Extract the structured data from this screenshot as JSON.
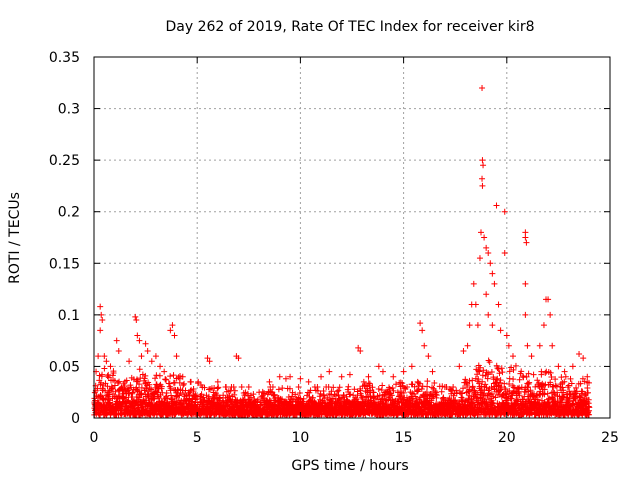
{
  "chart_data": {
    "type": "scatter",
    "title": "Day 262 of 2019, Rate Of TEC Index for receiver kir8",
    "xlabel": "GPS time / hours",
    "ylabel": "ROTI / TECUs",
    "xlim": [
      0,
      25
    ],
    "ylim": [
      0,
      0.35
    ],
    "x_ticks": [
      0,
      5,
      10,
      15,
      20,
      25
    ],
    "y_ticks": [
      0,
      0.05,
      0.1,
      0.15,
      0.2,
      0.25,
      0.3,
      0.35
    ],
    "x_tick_labels": [
      "0",
      "5",
      "10",
      "15",
      "20",
      "25"
    ],
    "y_tick_labels": [
      "0",
      "0.05",
      "0.1",
      "0.15",
      "0.2",
      "0.25",
      "0.3",
      "0.35"
    ],
    "grid": true,
    "marker": "+",
    "marker_color": "#ff0000",
    "series": [
      {
        "name": "ROTI",
        "points": [
          [
            0.1,
            0.045
          ],
          [
            0.2,
            0.06
          ],
          [
            0.3,
            0.108
          ],
          [
            0.35,
            0.1
          ],
          [
            0.4,
            0.095
          ],
          [
            0.3,
            0.085
          ],
          [
            0.5,
            0.06
          ],
          [
            0.6,
            0.055
          ],
          [
            0.8,
            0.05
          ],
          [
            1.1,
            0.075
          ],
          [
            1.2,
            0.065
          ],
          [
            1.5,
            0.035
          ],
          [
            1.7,
            0.055
          ],
          [
            2.0,
            0.098
          ],
          [
            2.05,
            0.095
          ],
          [
            2.1,
            0.08
          ],
          [
            2.2,
            0.075
          ],
          [
            2.3,
            0.06
          ],
          [
            2.5,
            0.072
          ],
          [
            2.6,
            0.065
          ],
          [
            2.8,
            0.055
          ],
          [
            3.0,
            0.06
          ],
          [
            3.2,
            0.05
          ],
          [
            3.4,
            0.045
          ],
          [
            3.7,
            0.085
          ],
          [
            3.8,
            0.09
          ],
          [
            3.9,
            0.08
          ],
          [
            4.0,
            0.06
          ],
          [
            4.3,
            0.04
          ],
          [
            4.7,
            0.035
          ],
          [
            5.5,
            0.058
          ],
          [
            5.6,
            0.055
          ],
          [
            6.0,
            0.035
          ],
          [
            6.4,
            0.03
          ],
          [
            6.9,
            0.06
          ],
          [
            7.0,
            0.058
          ],
          [
            7.5,
            0.03
          ],
          [
            8.0,
            0.025
          ],
          [
            8.5,
            0.035
          ],
          [
            9.0,
            0.04
          ],
          [
            9.3,
            0.038
          ],
          [
            9.5,
            0.04
          ],
          [
            10.0,
            0.038
          ],
          [
            10.4,
            0.035
          ],
          [
            11.0,
            0.04
          ],
          [
            11.4,
            0.045
          ],
          [
            12.0,
            0.04
          ],
          [
            12.4,
            0.042
          ],
          [
            12.8,
            0.068
          ],
          [
            12.9,
            0.065
          ],
          [
            13.3,
            0.04
          ],
          [
            13.8,
            0.05
          ],
          [
            14.0,
            0.045
          ],
          [
            14.5,
            0.04
          ],
          [
            15.0,
            0.045
          ],
          [
            15.4,
            0.05
          ],
          [
            15.8,
            0.092
          ],
          [
            15.9,
            0.085
          ],
          [
            16.0,
            0.07
          ],
          [
            16.2,
            0.06
          ],
          [
            16.4,
            0.045
          ],
          [
            17.0,
            0.03
          ],
          [
            17.4,
            0.03
          ],
          [
            17.7,
            0.05
          ],
          [
            17.9,
            0.065
          ],
          [
            18.1,
            0.07
          ],
          [
            18.2,
            0.09
          ],
          [
            18.3,
            0.11
          ],
          [
            18.4,
            0.13
          ],
          [
            18.5,
            0.11
          ],
          [
            18.6,
            0.09
          ],
          [
            18.7,
            0.155
          ],
          [
            18.75,
            0.18
          ],
          [
            18.8,
            0.32
          ],
          [
            18.82,
            0.25
          ],
          [
            18.85,
            0.245
          ],
          [
            18.8,
            0.232
          ],
          [
            18.82,
            0.225
          ],
          [
            18.9,
            0.175
          ],
          [
            19.0,
            0.165
          ],
          [
            19.1,
            0.16
          ],
          [
            19.2,
            0.15
          ],
          [
            19.3,
            0.14
          ],
          [
            19.4,
            0.13
          ],
          [
            19.0,
            0.12
          ],
          [
            19.1,
            0.1
          ],
          [
            19.3,
            0.09
          ],
          [
            19.5,
            0.206
          ],
          [
            19.6,
            0.11
          ],
          [
            19.7,
            0.085
          ],
          [
            19.9,
            0.2
          ],
          [
            19.9,
            0.16
          ],
          [
            20.0,
            0.08
          ],
          [
            20.1,
            0.07
          ],
          [
            20.3,
            0.06
          ],
          [
            20.9,
            0.18
          ],
          [
            20.9,
            0.175
          ],
          [
            20.95,
            0.17
          ],
          [
            20.9,
            0.13
          ],
          [
            20.9,
            0.1
          ],
          [
            21.0,
            0.07
          ],
          [
            21.2,
            0.06
          ],
          [
            21.6,
            0.07
          ],
          [
            21.8,
            0.09
          ],
          [
            21.9,
            0.115
          ],
          [
            22.0,
            0.115
          ],
          [
            22.1,
            0.1
          ],
          [
            22.2,
            0.07
          ],
          [
            22.5,
            0.05
          ],
          [
            22.8,
            0.045
          ],
          [
            23.2,
            0.05
          ],
          [
            23.5,
            0.062
          ],
          [
            23.7,
            0.058
          ],
          [
            23.9,
            0.04
          ]
        ]
      }
    ],
    "envelope": {
      "description": "upper bound (hours, ROTI) of the dense baseline band of markers",
      "x": [
        0,
        0.5,
        1,
        1.5,
        2,
        2.5,
        3,
        3.5,
        4,
        4.5,
        5,
        5.5,
        6,
        6.5,
        7,
        7.5,
        8,
        8.5,
        9,
        9.5,
        10,
        10.5,
        11,
        11.5,
        12,
        12.5,
        13,
        13.5,
        14,
        14.5,
        15,
        15.5,
        16,
        16.5,
        17,
        17.5,
        18,
        18.5,
        19,
        19.5,
        20,
        20.5,
        21,
        21.5,
        22,
        22.5,
        23,
        23.5,
        24
      ],
      "y": [
        0.04,
        0.05,
        0.045,
        0.04,
        0.05,
        0.045,
        0.045,
        0.04,
        0.045,
        0.035,
        0.035,
        0.035,
        0.03,
        0.03,
        0.03,
        0.03,
        0.025,
        0.03,
        0.03,
        0.03,
        0.03,
        0.03,
        0.03,
        0.03,
        0.035,
        0.03,
        0.035,
        0.035,
        0.035,
        0.035,
        0.04,
        0.04,
        0.04,
        0.035,
        0.03,
        0.03,
        0.045,
        0.05,
        0.06,
        0.055,
        0.055,
        0.05,
        0.05,
        0.045,
        0.045,
        0.04,
        0.04,
        0.04,
        0.035
      ]
    }
  }
}
